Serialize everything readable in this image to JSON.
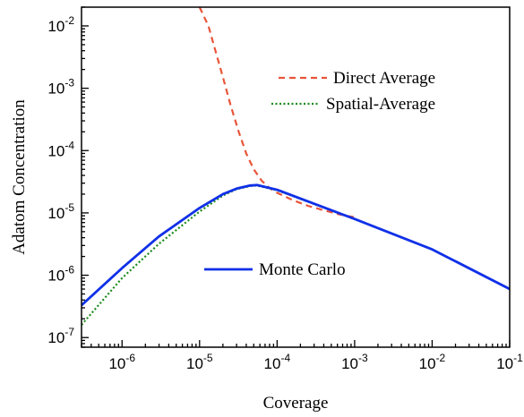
{
  "chart_data": {
    "type": "line",
    "xlabel": "Coverage",
    "ylabel": "Adatom Concentration",
    "x_scale": "log",
    "y_scale": "log",
    "xlim": [
      3e-07,
      0.1
    ],
    "ylim": [
      7e-08,
      0.02
    ],
    "grid": false,
    "x_ticks": [
      {
        "base": "10",
        "exp": "-6",
        "value": 1e-06
      },
      {
        "base": "10",
        "exp": "-5",
        "value": 1e-05
      },
      {
        "base": "10",
        "exp": "-4",
        "value": 0.0001
      },
      {
        "base": "10",
        "exp": "-3",
        "value": 0.001
      },
      {
        "base": "10",
        "exp": "-2",
        "value": 0.01
      },
      {
        "base": "10",
        "exp": "-1",
        "value": 0.1
      }
    ],
    "y_ticks": [
      {
        "base": "10",
        "exp": "-7",
        "value": 1e-07
      },
      {
        "base": "10",
        "exp": "-6",
        "value": 1e-06
      },
      {
        "base": "10",
        "exp": "-5",
        "value": 1e-05
      },
      {
        "base": "10",
        "exp": "-4",
        "value": 0.0001
      },
      {
        "base": "10",
        "exp": "-3",
        "value": 0.001
      },
      {
        "base": "10",
        "exp": "-2",
        "value": 0.01
      }
    ],
    "series": [
      {
        "name": "Direct Average",
        "color": "#e8553a",
        "style": "dashed",
        "x": [
          1e-05,
          1.3e-05,
          1.6e-05,
          2e-05,
          2.5e-05,
          3.2e-05,
          4e-05,
          5e-05,
          6.3e-05,
          8e-05,
          0.0001,
          0.00016,
          0.00025,
          0.0004,
          0.00063,
          0.001
        ],
        "y": [
          0.02,
          0.01,
          0.004,
          0.0015,
          0.00055,
          0.0002,
          9e-05,
          5e-05,
          3.3e-05,
          2.5e-05,
          2.1e-05,
          1.6e-05,
          1.3e-05,
          1.1e-05,
          9.5e-06,
          8.5e-06
        ]
      },
      {
        "name": "Spatial-Average",
        "color": "#1a8a1a",
        "style": "dotted",
        "x": [
          3e-07,
          1e-06,
          3e-06,
          1e-05,
          2e-05,
          3e-05,
          4.5e-05,
          5.5e-05,
          0.0001,
          0.001,
          0.01,
          0.1
        ],
        "y": [
          1.6e-07,
          9e-07,
          3.2e-06,
          1.05e-05,
          1.9e-05,
          2.4e-05,
          2.7e-05,
          2.75e-05,
          2.3e-05,
          8e-06,
          2.6e-06,
          6e-07
        ]
      },
      {
        "name": "Monte Carlo",
        "color": "#1030e8",
        "style": "solid",
        "x": [
          3e-07,
          1e-06,
          3e-06,
          1e-05,
          2e-05,
          3e-05,
          4.5e-05,
          5.5e-05,
          0.0001,
          0.001,
          0.01,
          0.1
        ],
        "y": [
          3.3e-07,
          1.3e-06,
          4.2e-06,
          1.2e-05,
          2e-05,
          2.45e-05,
          2.75e-05,
          2.8e-05,
          2.35e-05,
          8e-06,
          2.6e-06,
          6e-07
        ]
      }
    ]
  }
}
